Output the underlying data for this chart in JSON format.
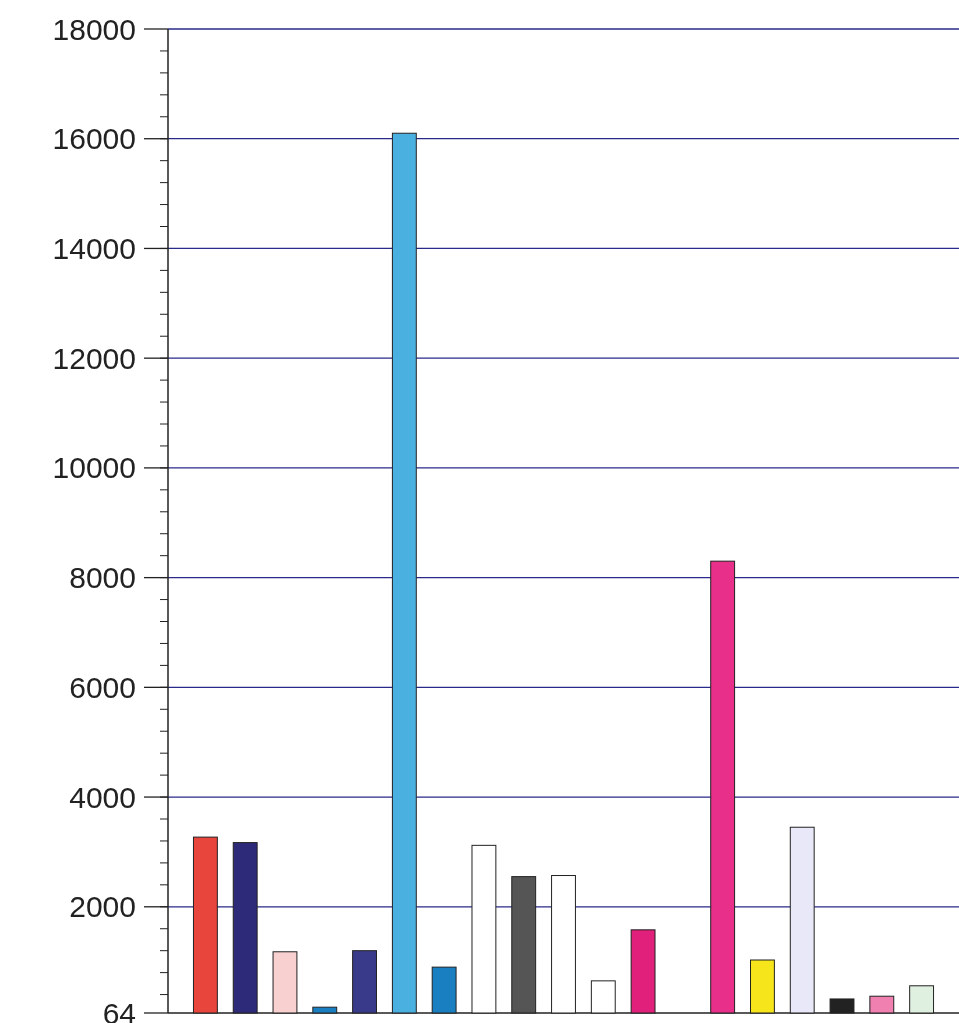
{
  "chart_data": {
    "type": "bar",
    "categories": [
      null,
      null,
      null,
      null,
      null,
      null,
      null,
      null,
      null,
      null,
      null,
      null,
      null,
      null,
      null,
      null,
      null,
      null,
      null
    ],
    "values": [
      3270,
      3170,
      1180,
      170,
      1200,
      16100,
      900,
      3120,
      2550,
      2570,
      650,
      1580,
      null,
      8300,
      1030,
      3450,
      320,
      370,
      560
    ],
    "colors": [
      "#e8453c",
      "#2e2a7a",
      "#f8d0d0",
      "#1a7fc0",
      "#3a3a8a",
      "#4ab0e0",
      "#1a7fc0",
      "#ffffff",
      "#555555",
      "#ffffff",
      "#ffffff",
      "#e0207a",
      null,
      "#e8308a",
      "#f5e51a",
      "#e8e8f8",
      "#222222",
      "#f080b0",
      "#e0f0e0"
    ],
    "ylim": [
      64,
      18000
    ],
    "yticks": [
      64,
      2000,
      4000,
      6000,
      8000,
      10000,
      12000,
      14000,
      16000,
      18000
    ],
    "grid": "y"
  }
}
